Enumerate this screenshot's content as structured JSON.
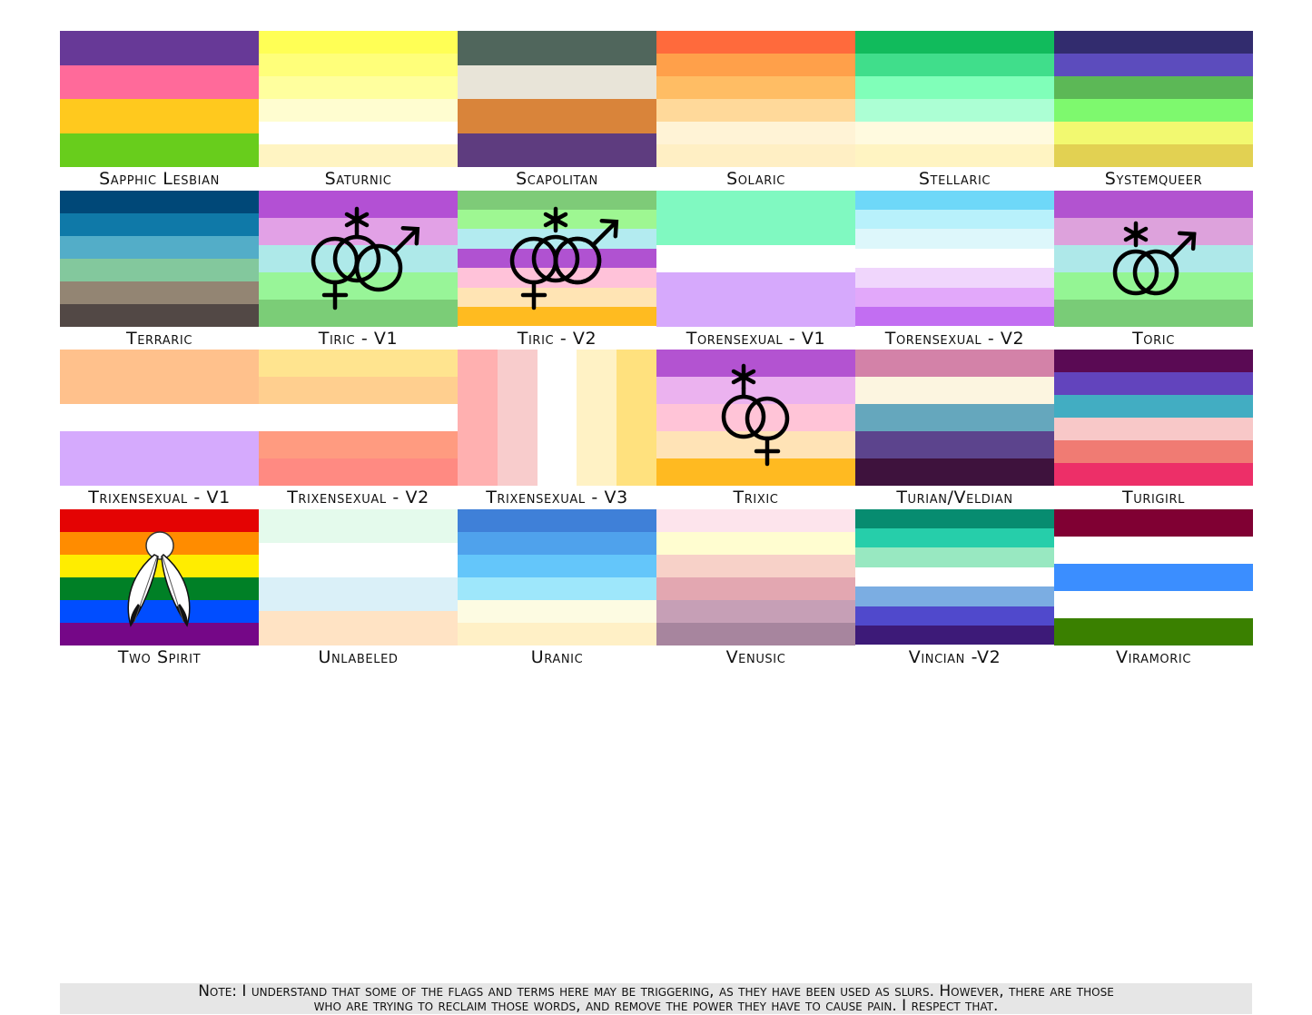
{
  "flags": [
    {
      "name": "Sapphic Lesbian",
      "stripes": [
        "#673997",
        "#ff6a9a",
        "#ffc91e",
        "#68cd1c"
      ]
    },
    {
      "name": "Saturnic",
      "stripes": [
        "#ffff55",
        "#ffff7a",
        "#ffff9e",
        "#fffdd0",
        "#ffffff",
        "#fff4c2"
      ]
    },
    {
      "name": "Scapolitan",
      "stripes": [
        "#50665c",
        "#e8e4d8",
        "#d9843a",
        "#5e3c7f"
      ]
    },
    {
      "name": "Solaric",
      "stripes": [
        "#ff6a3c",
        "#ffa04a",
        "#ffbd64",
        "#ffd99a",
        "#fff3d6",
        "#ffefc4"
      ]
    },
    {
      "name": "Stellaric",
      "stripes": [
        "#11bb5c",
        "#40de8b",
        "#80ffb9",
        "#acffd4",
        "#fffadf",
        "#fff4c2"
      ]
    },
    {
      "name": "Systemqueer",
      "stripes": [
        "#322c6e",
        "#5c4cbd",
        "#5cb856",
        "#7ef96e",
        "#f2f970",
        "#e2d152"
      ]
    },
    {
      "name": "Terraric",
      "stripes": [
        "#004878",
        "#0f79a8",
        "#53adc8",
        "#83c89d",
        "#938573",
        "#524845"
      ]
    },
    {
      "name": "Tiric - V1",
      "stripes": [
        "#b350d4",
        "#e2a1e6",
        "#aee9e9",
        "#98f598",
        "#7bcd77"
      ],
      "emblem": "ace-female-male"
    },
    {
      "name": "Tiric - V2",
      "stripes": [
        "#7ecb78",
        "#9ef792",
        "#b3ebf0",
        "#b052d1",
        "#ffc2d9",
        "#ffe4b4",
        "#ffbb20"
      ],
      "emblem": "ace-female-female-male"
    },
    {
      "name": "Torensexual - V1",
      "stripes": [
        "#80f9c1",
        "#80f9c1",
        "#ffffff",
        "#d6a9fc",
        "#d6a9fc"
      ]
    },
    {
      "name": "Torensexual - V2",
      "stripes": [
        "#6ed8f8",
        "#b8f1fb",
        "#ddf7fb",
        "#ffffff",
        "#f0d6fc",
        "#e2a8fa",
        "#c26ef2"
      ]
    },
    {
      "name": "Toric",
      "stripes": [
        "#b253d0",
        "#dda2dc",
        "#aee8e9",
        "#94f594",
        "#79cc77"
      ],
      "emblem": "ace-male"
    },
    {
      "name": "Trixensexual - V1",
      "stripes": [
        "#ffc18c",
        "#ffc18c",
        "#ffffff",
        "#d5aafd",
        "#d5aafd"
      ]
    },
    {
      "name": "Trixensexual - V2",
      "stripes": [
        "#ffe48f",
        "#ffcf8f",
        "#ffffff",
        "#ff9b80",
        "#ff8a82"
      ]
    },
    {
      "name": "Trixensexual - V3",
      "stripes": [
        "#ffb0b0",
        "#f8cccc",
        "#ffffff",
        "#fff2c5",
        "#ffe17e"
      ],
      "vertical": true
    },
    {
      "name": "Trixic",
      "stripes": [
        "#b353d1",
        "#ebb2ef",
        "#ffc4d7",
        "#ffe3b6",
        "#ffba21"
      ],
      "emblem": "ace-female-female"
    },
    {
      "name": "Turian/Veldian",
      "stripes": [
        "#d382a8",
        "#fcf5e0",
        "#65a7bd",
        "#5c448d",
        "#3e123d"
      ]
    },
    {
      "name": "Turigirl",
      "stripes": [
        "#5a0a54",
        "#6244bd",
        "#42adc2",
        "#f8c8c8",
        "#f07b73",
        "#ed2f68"
      ]
    },
    {
      "name": "Two Spirit",
      "stripes": [
        "#e40303",
        "#ff8c00",
        "#ffed00",
        "#008026",
        "#004dff",
        "#750787"
      ],
      "emblem": "feathers"
    },
    {
      "name": "Unlabeled",
      "stripes": [
        "#e4faec",
        "#ffffff",
        "#daf0f8",
        "#ffe3c4"
      ]
    },
    {
      "name": "Uranic",
      "stripes": [
        "#3f80d8",
        "#4fa2ec",
        "#64c6fa",
        "#9ee7fb",
        "#fdfbe2",
        "#fff0c6"
      ]
    },
    {
      "name": "Venusic",
      "stripes": [
        "#fde4ec",
        "#fffdd0",
        "#f7d1c8",
        "#e3a7b1",
        "#c69fb6",
        "#a7859e"
      ]
    },
    {
      "name": "Vincian -V2",
      "stripes": [
        "#078c70",
        "#26ceaa",
        "#98e8c1",
        "#ffffff",
        "#7bade2",
        "#5049cc",
        "#3d1a78"
      ]
    },
    {
      "name": "Viramoric",
      "stripes": [
        "#800033",
        "#ffffff",
        "#3b8eff",
        "#ffffff",
        "#3a8000"
      ]
    }
  ],
  "note": {
    "line1": "Note: I understand that some of the flags and terms here may be triggering, as they have been used as slurs. However, there are those",
    "line2": "who are trying to reclaim those words, and remove the power they have to cause pain. I respect that."
  }
}
